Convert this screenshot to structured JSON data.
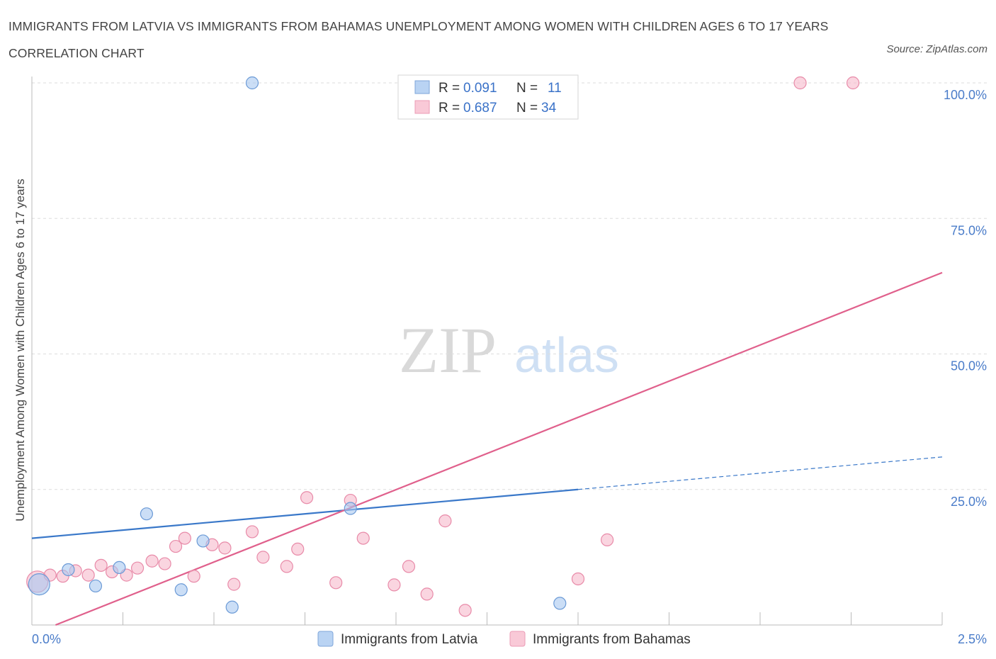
{
  "header": {
    "title": "IMMIGRANTS FROM LATVIA VS IMMIGRANTS FROM BAHAMAS UNEMPLOYMENT AMONG WOMEN WITH CHILDREN AGES 6 TO 17 YEARS CORRELATION CHART",
    "source": "Source: ZipAtlas.com"
  },
  "watermark": {
    "zip": "ZIP",
    "atlas": "atlas"
  },
  "legend": {
    "rows": [
      {
        "r_label": "R =",
        "r_value": "0.091",
        "n_label": "N =",
        "n_value": "11"
      },
      {
        "r_label": "R =",
        "r_value": "0.687",
        "n_label": "N =",
        "n_value": "34"
      }
    ]
  },
  "colors": {
    "latvia": "#a9c8f0",
    "latvia_stroke": "#6b9ad6",
    "latvia_line": "#3a78c9",
    "bahamas": "#f7b9cc",
    "bahamas_stroke": "#e88aa8",
    "bahamas_line": "#e0608c",
    "grid": "#dddddd"
  },
  "chart_data": {
    "type": "scatter",
    "title": "IMMIGRANTS FROM LATVIA VS IMMIGRANTS FROM BAHAMAS UNEMPLOYMENT AMONG WOMEN WITH CHILDREN AGES 6 TO 17 YEARS CORRELATION CHART",
    "xlabel": "",
    "ylabel": "Unemployment Among Women with Children Ages 6 to 17 years",
    "xlim": [
      0,
      2.5
    ],
    "ylim": [
      0,
      100
    ],
    "x_tick_labels": [
      "0.0%",
      "2.5%"
    ],
    "y_ticks": [
      25,
      50,
      75,
      100
    ],
    "y_tick_labels": [
      "25.0%",
      "50.0%",
      "75.0%",
      "100.0%"
    ],
    "legend_position": "top-center",
    "series": [
      {
        "name": "Immigrants from Latvia",
        "R": 0.091,
        "N": 11,
        "points": [
          {
            "x": 0.02,
            "y": 7.5,
            "size": "large"
          },
          {
            "x": 0.1,
            "y": 10.2
          },
          {
            "x": 0.175,
            "y": 7.2
          },
          {
            "x": 0.24,
            "y": 10.6
          },
          {
            "x": 0.315,
            "y": 20.5
          },
          {
            "x": 0.41,
            "y": 6.5
          },
          {
            "x": 0.47,
            "y": 15.5
          },
          {
            "x": 0.55,
            "y": 3.3
          },
          {
            "x": 0.605,
            "y": 100
          },
          {
            "x": 0.875,
            "y": 21.5
          },
          {
            "x": 1.45,
            "y": 4.0
          }
        ],
        "trend": {
          "x0": 0,
          "y0": 16.0,
          "x1": 1.5,
          "y1": 25.0,
          "dashed_to_x": 2.5,
          "dashed_to_y": 31.0
        }
      },
      {
        "name": "Immigrants from Bahamas",
        "R": 0.687,
        "N": 34,
        "points": [
          {
            "x": 0.015,
            "y": 8.0,
            "size": "large"
          },
          {
            "x": 0.05,
            "y": 9.2
          },
          {
            "x": 0.085,
            "y": 9.0
          },
          {
            "x": 0.12,
            "y": 10.0
          },
          {
            "x": 0.155,
            "y": 9.2
          },
          {
            "x": 0.19,
            "y": 11.0
          },
          {
            "x": 0.22,
            "y": 9.8
          },
          {
            "x": 0.26,
            "y": 9.2
          },
          {
            "x": 0.29,
            "y": 10.5
          },
          {
            "x": 0.33,
            "y": 11.8
          },
          {
            "x": 0.365,
            "y": 11.3
          },
          {
            "x": 0.395,
            "y": 14.5
          },
          {
            "x": 0.42,
            "y": 16.0
          },
          {
            "x": 0.445,
            "y": 9.0
          },
          {
            "x": 0.495,
            "y": 14.8
          },
          {
            "x": 0.53,
            "y": 14.2
          },
          {
            "x": 0.555,
            "y": 7.5
          },
          {
            "x": 0.605,
            "y": 17.2
          },
          {
            "x": 0.635,
            "y": 12.5
          },
          {
            "x": 0.7,
            "y": 10.8
          },
          {
            "x": 0.73,
            "y": 14.0
          },
          {
            "x": 0.755,
            "y": 23.5
          },
          {
            "x": 0.835,
            "y": 7.8
          },
          {
            "x": 0.875,
            "y": 23.0
          },
          {
            "x": 0.91,
            "y": 16.0
          },
          {
            "x": 0.995,
            "y": 7.4
          },
          {
            "x": 1.035,
            "y": 10.8
          },
          {
            "x": 1.085,
            "y": 5.7
          },
          {
            "x": 1.135,
            "y": 19.2
          },
          {
            "x": 1.19,
            "y": 2.7
          },
          {
            "x": 1.5,
            "y": 8.5
          },
          {
            "x": 1.58,
            "y": 15.7
          },
          {
            "x": 2.11,
            "y": 100
          },
          {
            "x": 2.255,
            "y": 100
          }
        ],
        "trend": {
          "x0": 0.065,
          "y0": 0,
          "x1": 2.5,
          "y1": 65.0
        }
      }
    ]
  },
  "bottom_legend": {
    "items": [
      {
        "label": "Immigrants from Latvia"
      },
      {
        "label": "Immigrants from Bahamas"
      }
    ]
  }
}
